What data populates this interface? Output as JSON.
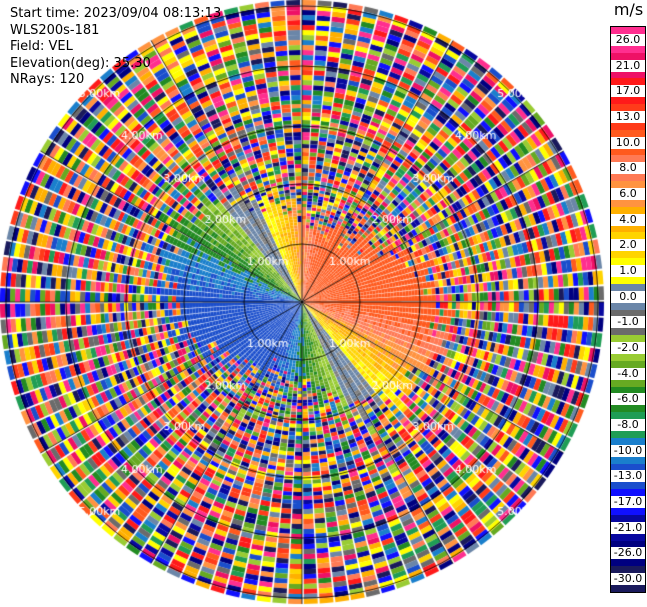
{
  "info": {
    "start_time": "Start time: 2023/09/04 08:13:13",
    "instrument": "WLS200s-181",
    "field": "Field: VEL",
    "elevation": "Elevation(deg): 35.30",
    "nrays": "NRays: 120"
  },
  "colorbar": {
    "unit": "m/s",
    "ticks": [
      "26.0",
      "21.0",
      "17.0",
      "13.0",
      "10.0",
      "8.0",
      "6.0",
      "4.0",
      "2.0",
      "1.0",
      "0.0",
      "-1.0",
      "-2.0",
      "-4.0",
      "-6.0",
      "-8.0",
      "-10.0",
      "-13.0",
      "-17.0",
      "-21.0",
      "-26.0",
      "-30.0"
    ],
    "colors": [
      "#ff2e8f",
      "#ee1166",
      "#ff1a1a",
      "#ff3b1a",
      "#ff5a1e",
      "#ff7a55",
      "#ff9340",
      "#ffb000",
      "#ffd400",
      "#ffff00",
      "#6b86a8",
      "#6b6b6b",
      "#99cc33",
      "#66aa22",
      "#228b22",
      "#1f9d55",
      "#1a7fcc",
      "#1a4ecc",
      "#1010ff",
      "#0808a0",
      "#000080",
      "#1a1a5c"
    ]
  },
  "range_rings": {
    "labels": [
      "1.00km",
      "2.00km",
      "3.00km",
      "4.00km",
      "5.00km"
    ]
  }
}
